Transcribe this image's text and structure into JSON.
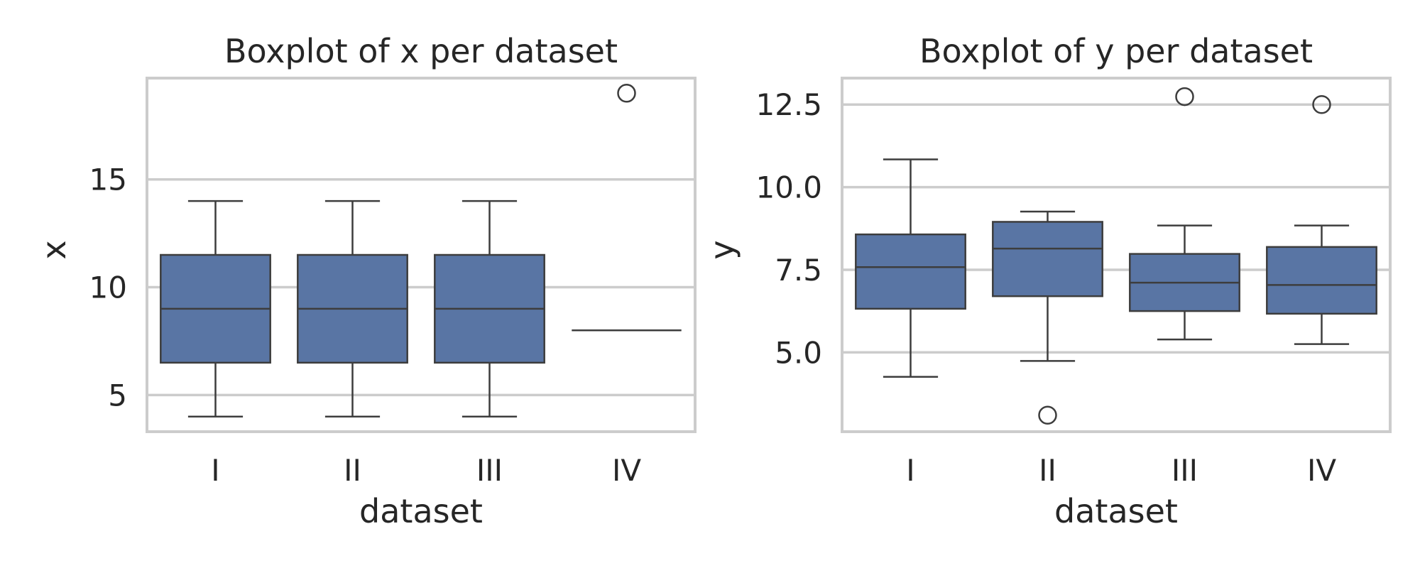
{
  "chart_data": [
    {
      "type": "box",
      "title": "Boxplot of x per dataset",
      "xlabel": "dataset",
      "ylabel": "x",
      "ylim": [
        3.3,
        19.7
      ],
      "yticks": [
        5,
        10,
        15
      ],
      "grid": true,
      "color": "#5975a4",
      "categories": [
        "I",
        "II",
        "III",
        "IV"
      ],
      "boxes": [
        {
          "category": "I",
          "whisker_low": 4,
          "q1": 6.5,
          "median": 9,
          "q3": 11.5,
          "whisker_high": 14,
          "outliers": []
        },
        {
          "category": "II",
          "whisker_low": 4,
          "q1": 6.5,
          "median": 9,
          "q3": 11.5,
          "whisker_high": 14,
          "outliers": []
        },
        {
          "category": "III",
          "whisker_low": 4,
          "q1": 6.5,
          "median": 9,
          "q3": 11.5,
          "whisker_high": 14,
          "outliers": []
        },
        {
          "category": "IV",
          "whisker_low": 8,
          "q1": 8,
          "median": 8,
          "q3": 8,
          "whisker_high": 8,
          "outliers": [
            19
          ]
        }
      ]
    },
    {
      "type": "box",
      "title": "Boxplot of y per dataset",
      "xlabel": "dataset",
      "ylabel": "y",
      "ylim": [
        2.6,
        13.3
      ],
      "yticks": [
        5.0,
        7.5,
        10.0,
        12.5
      ],
      "ytick_labels": [
        "5.0",
        "7.5",
        "10.0",
        "12.5"
      ],
      "grid": true,
      "color": "#5975a4",
      "categories": [
        "I",
        "II",
        "III",
        "IV"
      ],
      "boxes": [
        {
          "category": "I",
          "whisker_low": 4.26,
          "q1": 6.32,
          "median": 7.58,
          "q3": 8.57,
          "whisker_high": 10.84,
          "outliers": []
        },
        {
          "category": "II",
          "whisker_low": 4.74,
          "q1": 6.7,
          "median": 8.14,
          "q3": 8.95,
          "whisker_high": 9.26,
          "outliers": [
            3.1
          ]
        },
        {
          "category": "III",
          "whisker_low": 5.39,
          "q1": 6.25,
          "median": 7.11,
          "q3": 7.98,
          "whisker_high": 8.84,
          "outliers": [
            12.74
          ]
        },
        {
          "category": "IV",
          "whisker_low": 5.25,
          "q1": 6.17,
          "median": 7.04,
          "q3": 8.19,
          "whisker_high": 8.84,
          "outliers": [
            12.5
          ]
        }
      ]
    }
  ]
}
